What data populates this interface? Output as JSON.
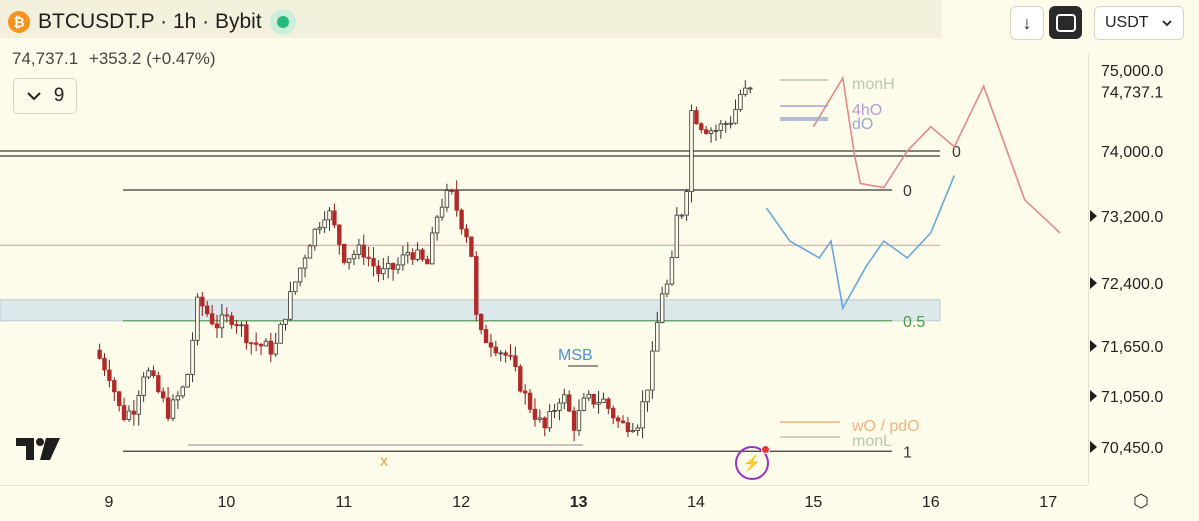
{
  "header": {
    "title": "BTCUSDT.P · 1h · Bybit",
    "symbol_icon": "bitcoin-icon",
    "last_price": "74,737.1",
    "change": "+353.2 (+0.47%)",
    "interval_value": "9",
    "currency": "USDT",
    "live_color": "#26b97b"
  },
  "chart_data": {
    "type": "candlestick",
    "price_axis_ticks": [
      "75,000.0",
      "74,000.0",
      "73,200.0",
      "72,400.0",
      "71,650.0",
      "71,050.0",
      "70,450.0"
    ],
    "price_axis_values": [
      75000,
      74000,
      73200,
      72400,
      71650,
      71050,
      70450
    ],
    "current_price_label": "74,737.1",
    "x_ticks": [
      "9",
      "10",
      "11",
      "12",
      "13",
      "14",
      "15",
      "16",
      "17"
    ],
    "bold_x_tick": "13",
    "ohlc_path": [
      [
        8.92,
        71600
      ],
      [
        9.05,
        71300
      ],
      [
        9.15,
        70800
      ],
      [
        9.25,
        70900
      ],
      [
        9.35,
        71400
      ],
      [
        9.55,
        70850
      ],
      [
        9.7,
        71200
      ],
      [
        9.8,
        72200
      ],
      [
        9.95,
        71900
      ],
      [
        10.1,
        72000
      ],
      [
        10.25,
        71700
      ],
      [
        10.45,
        71600
      ],
      [
        10.6,
        72300
      ],
      [
        10.75,
        72900
      ],
      [
        10.9,
        73300
      ],
      [
        11.05,
        72700
      ],
      [
        11.2,
        72800
      ],
      [
        11.35,
        72500
      ],
      [
        11.5,
        72600
      ],
      [
        11.6,
        72800
      ],
      [
        11.75,
        72600
      ],
      [
        11.85,
        73300
      ],
      [
        11.95,
        73500
      ],
      [
        12.05,
        73100
      ],
      [
        12.12,
        72900
      ],
      [
        12.18,
        71800
      ],
      [
        12.3,
        71700
      ],
      [
        12.45,
        71500
      ],
      [
        12.6,
        71000
      ],
      [
        12.75,
        70650
      ],
      [
        12.9,
        71100
      ],
      [
        13.0,
        70700
      ],
      [
        13.1,
        71000
      ],
      [
        13.25,
        71000
      ],
      [
        13.4,
        70700
      ],
      [
        13.55,
        70750
      ],
      [
        13.65,
        71300
      ],
      [
        13.75,
        72300
      ],
      [
        13.82,
        72400
      ],
      [
        13.88,
        73200
      ],
      [
        13.95,
        73300
      ],
      [
        14.0,
        74500
      ],
      [
        14.1,
        74300
      ],
      [
        14.2,
        74250
      ],
      [
        14.35,
        74400
      ],
      [
        14.42,
        74700
      ],
      [
        14.48,
        74737.1
      ]
    ],
    "levels": [
      {
        "label": "0",
        "price": 74000,
        "color": "#3a3a3a"
      },
      {
        "label": "0",
        "price": 73520,
        "color": "#3a3a3a"
      },
      {
        "label": "",
        "price": 72850,
        "color": "#e8a0a0"
      },
      {
        "label": "0.5",
        "price": 71950,
        "color": "#4a9a4a"
      },
      {
        "label": "1",
        "price": 70400,
        "color": "#3a3a3a"
      }
    ],
    "zone": {
      "top": 72200,
      "bottom": 71950,
      "color": "#dde8ea"
    },
    "ref_labels": [
      {
        "text": "monH",
        "color": "#b8c8b0"
      },
      {
        "text": "4hO",
        "color": "#b89ad6"
      },
      {
        "text": "dO",
        "color": "#9aa9cc"
      },
      {
        "text": "wO / pdO",
        "color": "#f2b27a"
      },
      {
        "text": "monL",
        "color": "#b8c8b0"
      }
    ],
    "annotations": [
      {
        "text": "MSB",
        "color": "#4a90d9"
      },
      {
        "text": "x",
        "color": "#f2a23a"
      }
    ],
    "projections": [
      {
        "color": "#e08a8a",
        "points": [
          [
            15.0,
            74300
          ],
          [
            15.25,
            74900
          ],
          [
            15.35,
            73950
          ],
          [
            15.4,
            73600
          ],
          [
            15.6,
            73550
          ],
          [
            15.8,
            74000
          ],
          [
            16.0,
            74300
          ],
          [
            16.2,
            74050
          ],
          [
            16.45,
            74800
          ],
          [
            16.6,
            74200
          ],
          [
            16.8,
            73400
          ],
          [
            17.1,
            73000
          ]
        ]
      },
      {
        "color": "#6aa7dc",
        "points": [
          [
            14.6,
            73300
          ],
          [
            14.8,
            72900
          ],
          [
            15.05,
            72700
          ],
          [
            15.15,
            72900
          ],
          [
            15.25,
            72100
          ],
          [
            15.45,
            72600
          ],
          [
            15.6,
            72900
          ],
          [
            15.8,
            72700
          ],
          [
            16.0,
            73000
          ],
          [
            16.2,
            73700
          ]
        ]
      }
    ]
  }
}
